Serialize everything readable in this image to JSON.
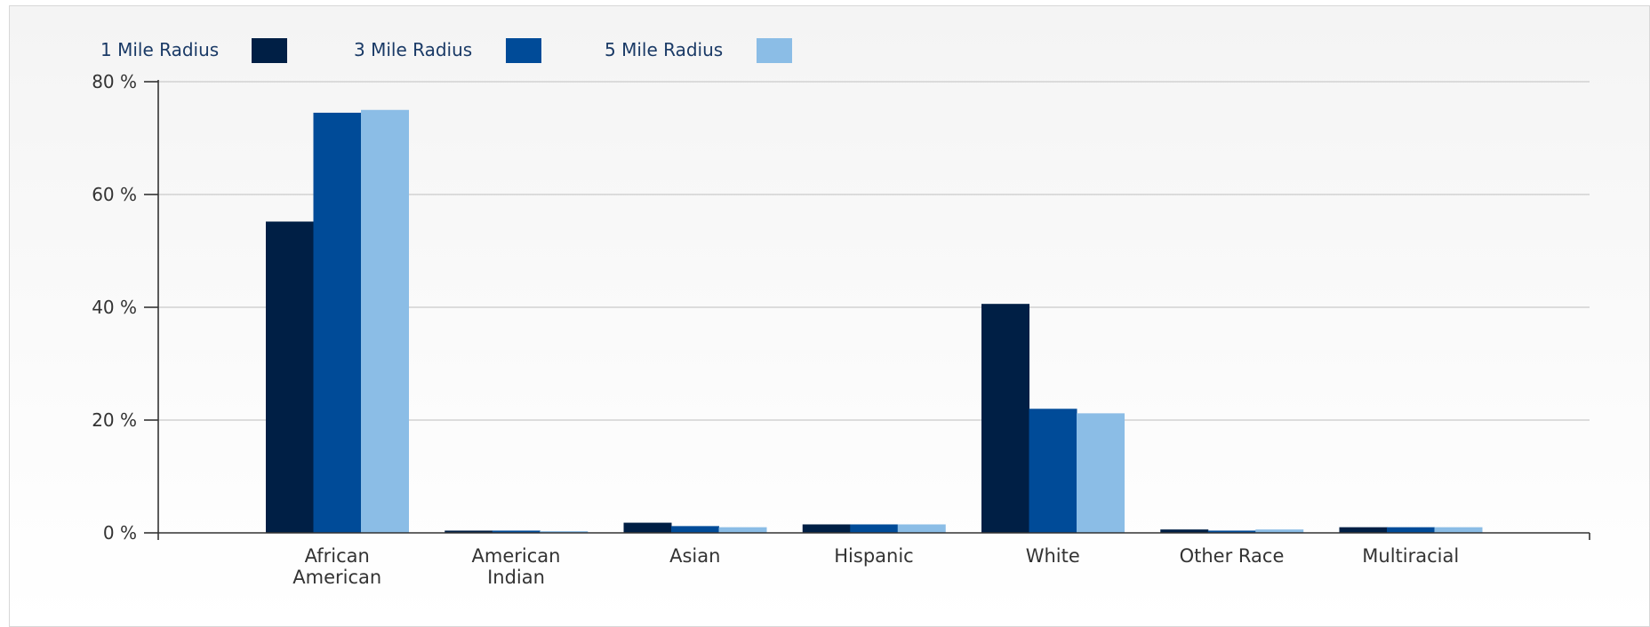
{
  "chart_data": {
    "type": "bar",
    "categories": [
      [
        "African",
        "American"
      ],
      [
        "American",
        "Indian"
      ],
      [
        "Asian"
      ],
      [
        "Hispanic"
      ],
      [
        "White"
      ],
      [
        "Other Race"
      ],
      [
        "Multiracial"
      ]
    ],
    "series": [
      {
        "name": "1 Mile Radius",
        "color": "#001f45",
        "values": [
          55.2,
          0.4,
          1.8,
          1.5,
          40.6,
          0.6,
          1.0
        ]
      },
      {
        "name": "3 Mile Radius",
        "color": "#004b98",
        "values": [
          74.5,
          0.4,
          1.2,
          1.5,
          22.0,
          0.4,
          1.0
        ]
      },
      {
        "name": "5 Mile Radius",
        "color": "#8bbde6",
        "values": [
          75.0,
          0.3,
          1.0,
          1.5,
          21.2,
          0.6,
          1.0
        ]
      }
    ],
    "yticks": [
      "0 %",
      "20 %",
      "40 %",
      "60 %",
      "80 %"
    ],
    "ylim": [
      0,
      80
    ],
    "grid": true,
    "legend": "top-left"
  }
}
